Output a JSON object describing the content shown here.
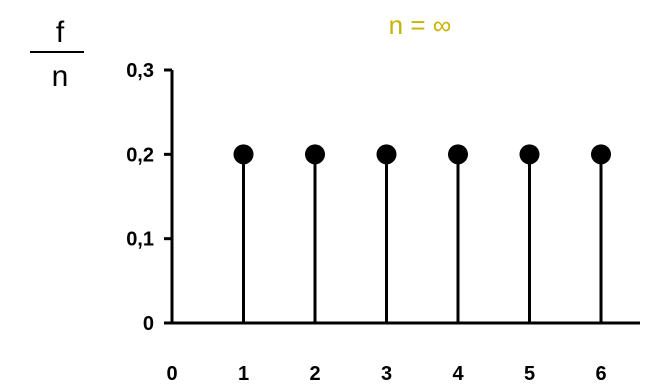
{
  "chart_data": {
    "type": "stem",
    "title": "n = ∞",
    "ylabel_numerator": "f",
    "ylabel_denominator": "n",
    "x": [
      1,
      2,
      3,
      4,
      5,
      6
    ],
    "values": [
      0.2,
      0.2,
      0.2,
      0.2,
      0.2,
      0.2
    ],
    "xlim": [
      0,
      6
    ],
    "ylim": [
      0,
      0.3
    ],
    "x_tick_labels": [
      "0",
      "1",
      "2",
      "3",
      "4",
      "5",
      "6"
    ],
    "y_tick_labels": [
      "0",
      "0,1",
      "0,2",
      "0,3"
    ],
    "y_tick_values": [
      0,
      0.1,
      0.2,
      0.3
    ],
    "grid": false,
    "colors": {
      "marks": "#000000",
      "title": "#c8b400"
    }
  }
}
